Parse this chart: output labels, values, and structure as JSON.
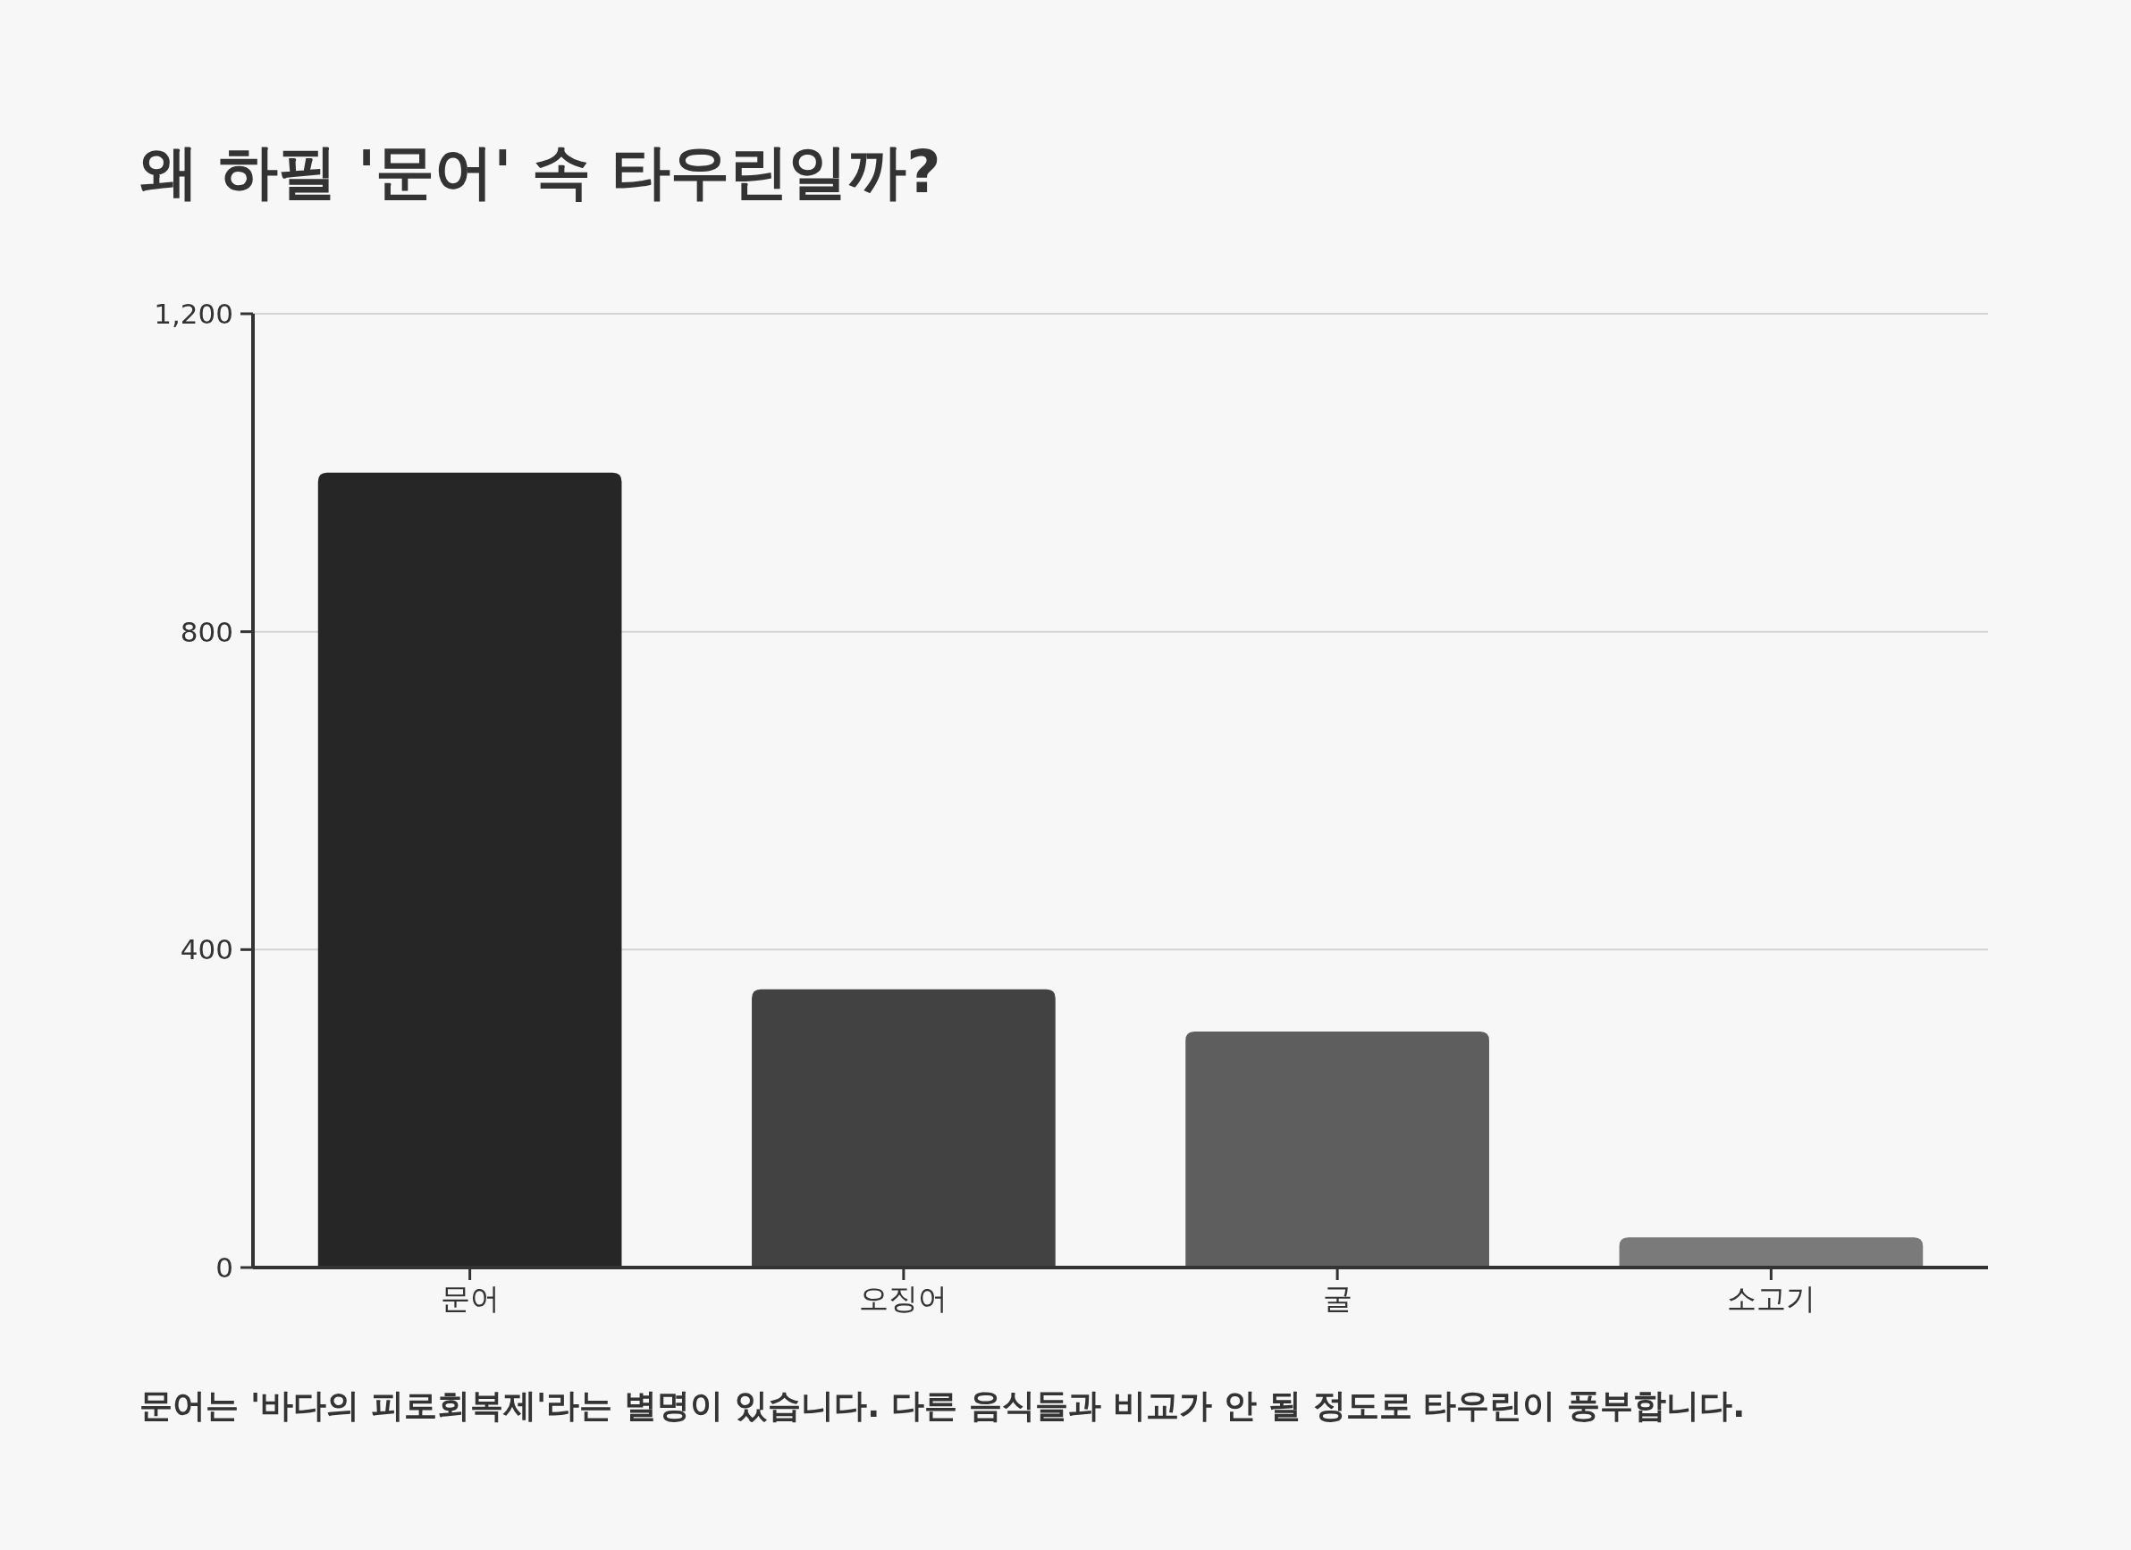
{
  "chart_data": {
    "type": "bar",
    "title": "왜 하필 '문어' 속 타우린일까?",
    "categories": [
      "문어",
      "오징어",
      "굴",
      "소고기"
    ],
    "values": [
      1000,
      350,
      297,
      38
    ],
    "colors": [
      "#262626",
      "#424242",
      "#5e5e5e",
      "#7a7a7a"
    ],
    "ylim": [
      0,
      1200
    ],
    "yticks": [
      0,
      400,
      800,
      {
        "value": 1200,
        "label": "1,200"
      }
    ],
    "grid": "y",
    "annotations": [
      "문어는 '바다의 피로회복제'라는 별명이 있습니다. 다른 음식들과 비교가 안 될 정도로 타우린이 풍부합니다."
    ]
  }
}
